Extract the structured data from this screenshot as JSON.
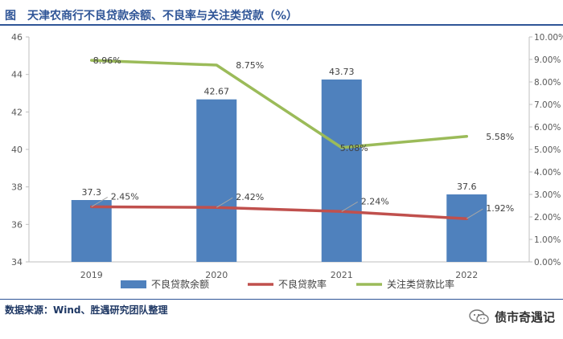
{
  "figure": {
    "title": "图　天津农商行不良贷款余额、不良率与关注类贷款（%）",
    "source": "数据来源：Wind、胜遇研究团队整理",
    "watermark_text": "债市奇遇记",
    "watermark_icon": "wechat-icon"
  },
  "colors": {
    "bar": "#4f81bd",
    "npl_ratio_line": "#c0504d",
    "attention_ratio_line": "#9bbb59",
    "title": "#2f5597",
    "axis": "#bfbfbf"
  },
  "chart_data": {
    "type": "bar",
    "categories": [
      "2019",
      "2020",
      "2021",
      "2022"
    ],
    "series": [
      {
        "name": "不良贷款余额",
        "type": "bar",
        "axis": "left",
        "values": [
          37.3,
          42.67,
          43.73,
          37.6
        ],
        "labels": [
          "37.3",
          "42.67",
          "43.73",
          "37.6"
        ]
      },
      {
        "name": "不良贷款率",
        "type": "line",
        "axis": "right",
        "values": [
          2.45,
          2.42,
          2.24,
          1.92
        ],
        "labels": [
          "2.45%",
          "2.42%",
          "2.24%",
          "1.92%"
        ]
      },
      {
        "name": "关注类贷款比率",
        "type": "line",
        "axis": "right",
        "values": [
          8.96,
          8.75,
          5.08,
          5.58
        ],
        "labels": [
          "8.96%",
          "8.75%",
          "5.08%",
          "5.58%"
        ]
      }
    ],
    "y_left": {
      "min": 34,
      "max": 46,
      "ticks": [
        "34",
        "36",
        "38",
        "40",
        "42",
        "44",
        "46"
      ]
    },
    "y_right": {
      "min": 0,
      "max": 10,
      "ticks": [
        "0.00%",
        "1.00%",
        "2.00%",
        "3.00%",
        "4.00%",
        "5.00%",
        "6.00%",
        "7.00%",
        "8.00%",
        "9.00%",
        "10.00%"
      ]
    },
    "grid": false,
    "legend_position": "bottom"
  }
}
